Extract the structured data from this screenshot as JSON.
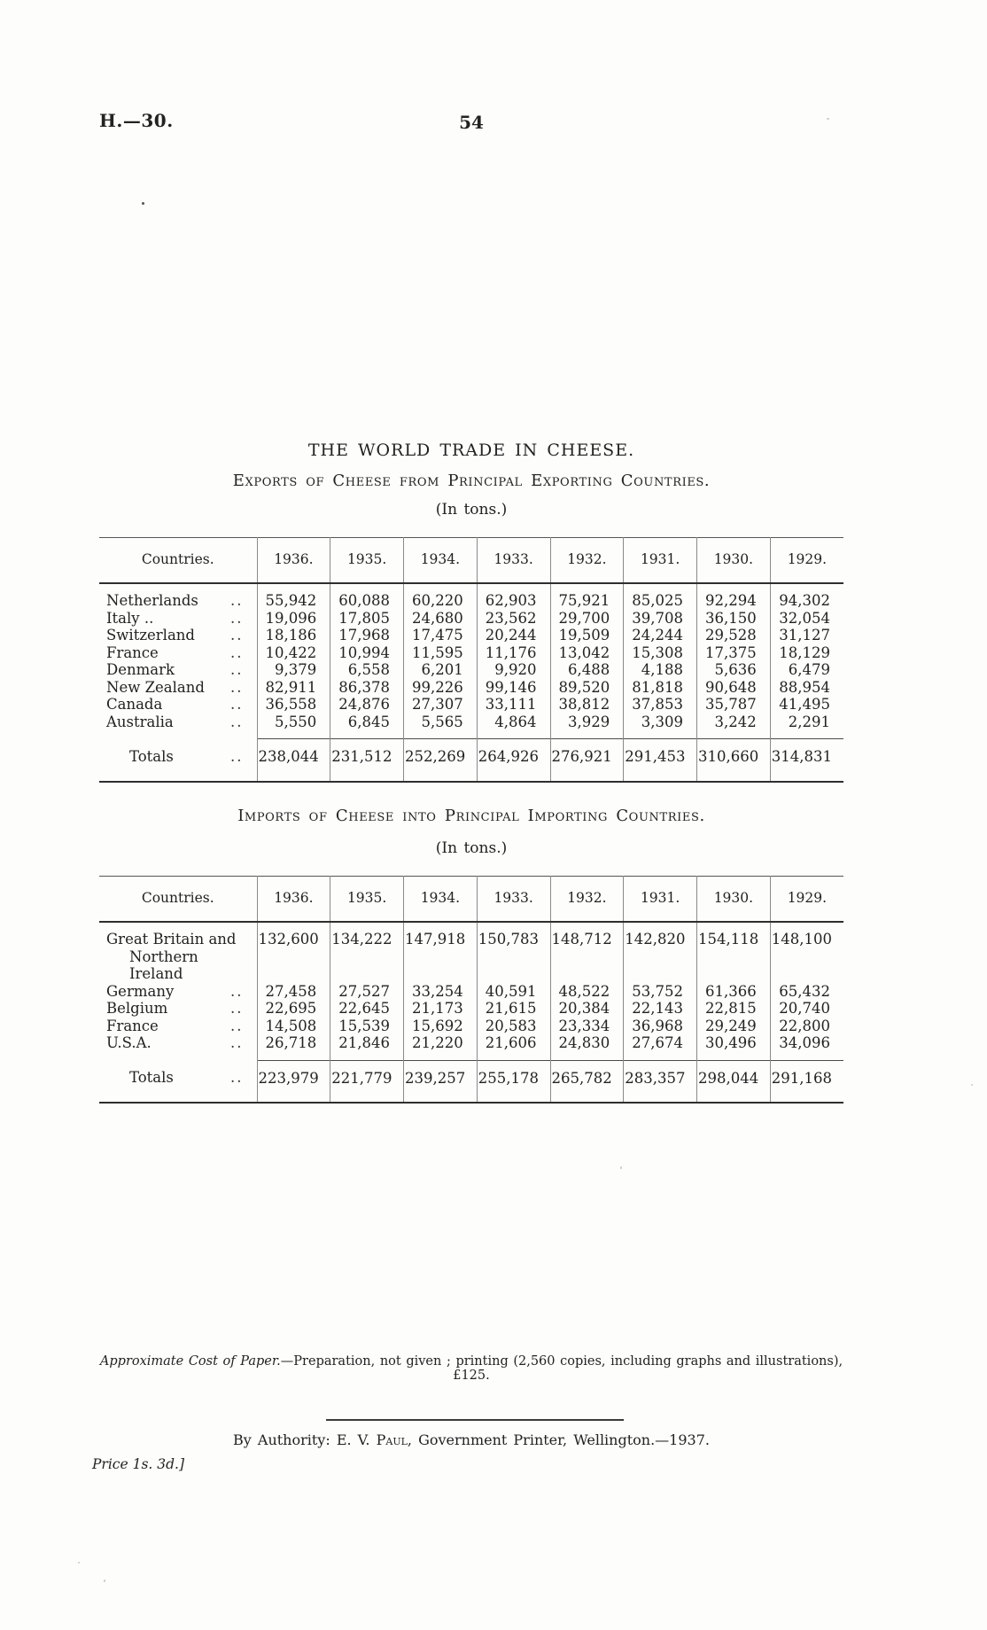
{
  "page": {
    "doc_ref": "H.—30.",
    "page_number": "54"
  },
  "title": "THE WORLD TRADE IN CHEESE.",
  "exports_table": {
    "subtitle": "Exports of Cheese from Principal Exporting Countries.",
    "units": "(In tons.)",
    "columns": [
      "Countries.",
      "1936.",
      "1935.",
      "1934.",
      "1933.",
      "1932.",
      "1931.",
      "1930.",
      "1929."
    ],
    "rows": [
      {
        "label": "Netherlands",
        "leader": "..",
        "values": [
          "55,942",
          "60,088",
          "60,220",
          "62,903",
          "75,921",
          "85,025",
          "92,294",
          "94,302"
        ]
      },
      {
        "label": "Italy ..",
        "leader": "..",
        "values": [
          "19,096",
          "17,805",
          "24,680",
          "23,562",
          "29,700",
          "39,708",
          "36,150",
          "32,054"
        ]
      },
      {
        "label": "Switzerland",
        "leader": "..",
        "values": [
          "18,186",
          "17,968",
          "17,475",
          "20,244",
          "19,509",
          "24,244",
          "29,528",
          "31,127"
        ]
      },
      {
        "label": "France",
        "leader": "..",
        "values": [
          "10,422",
          "10,994",
          "11,595",
          "11,176",
          "13,042",
          "15,308",
          "17,375",
          "18,129"
        ]
      },
      {
        "label": "Denmark",
        "leader": "..",
        "values": [
          "9,379",
          "6,558",
          "6,201",
          "9,920",
          "6,488",
          "4,188",
          "5,636",
          "6,479"
        ]
      },
      {
        "label": "New Zealand",
        "leader": "..",
        "values": [
          "82,911",
          "86,378",
          "99,226",
          "99,146",
          "89,520",
          "81,818",
          "90,648",
          "88,954"
        ]
      },
      {
        "label": "Canada",
        "leader": "..",
        "values": [
          "36,558",
          "24,876",
          "27,307",
          "33,111",
          "38,812",
          "37,853",
          "35,787",
          "41,495"
        ]
      },
      {
        "label": "Australia",
        "leader": "..",
        "values": [
          "5,550",
          "6,845",
          "5,565",
          "4,864",
          "3,929",
          "3,309",
          "3,242",
          "2,291"
        ]
      }
    ],
    "totals": {
      "label": "Totals",
      "leader": "..",
      "values": [
        "238,044",
        "231,512",
        "252,269",
        "264,926",
        "276,921",
        "291,453",
        "310,660",
        "314,831"
      ]
    }
  },
  "imports_table": {
    "subtitle": "Imports of Cheese into Principal Importing Countries.",
    "units": "(In tons.)",
    "columns": [
      "Countries.",
      "1936.",
      "1935.",
      "1934.",
      "1933.",
      "1932.",
      "1931.",
      "1930.",
      "1929."
    ],
    "rows": [
      {
        "label": "Great Britain and",
        "label2": "Northern Ireland",
        "values": [
          "132,600",
          "134,222",
          "147,918",
          "150,783",
          "148,712",
          "142,820",
          "154,118",
          "148,100"
        ]
      },
      {
        "label": "Germany",
        "leader": "..",
        "values": [
          "27,458",
          "27,527",
          "33,254",
          "40,591",
          "48,522",
          "53,752",
          "61,366",
          "65,432"
        ]
      },
      {
        "label": "Belgium",
        "leader": "..",
        "values": [
          "22,695",
          "22,645",
          "21,173",
          "21,615",
          "20,384",
          "22,143",
          "22,815",
          "20,740"
        ]
      },
      {
        "label": "France",
        "leader": "..",
        "values": [
          "14,508",
          "15,539",
          "15,692",
          "20,583",
          "23,334",
          "36,968",
          "29,249",
          "22,800"
        ]
      },
      {
        "label": "U.S.A.",
        "leader": "..",
        "values": [
          "26,718",
          "21,846",
          "21,220",
          "21,606",
          "24,830",
          "27,674",
          "30,496",
          "34,096"
        ]
      }
    ],
    "totals": {
      "label": "Totals",
      "leader": "..",
      "values": [
        "223,979",
        "221,779",
        "239,257",
        "255,178",
        "265,782",
        "283,357",
        "298,044",
        "291,168"
      ]
    }
  },
  "footer": {
    "cost_note_lead": "Approximate Cost of Paper.",
    "cost_note_rest": "—Preparation, not given ;  printing (2,560 copies, including graphs and illustrations), £125.",
    "authority_prefix": "By Authority: E. V. ",
    "authority_name": "Paul",
    "authority_suffix": ", Government Printer, Wellington.—1937.",
    "price": "Price 1s. 3d.]"
  }
}
